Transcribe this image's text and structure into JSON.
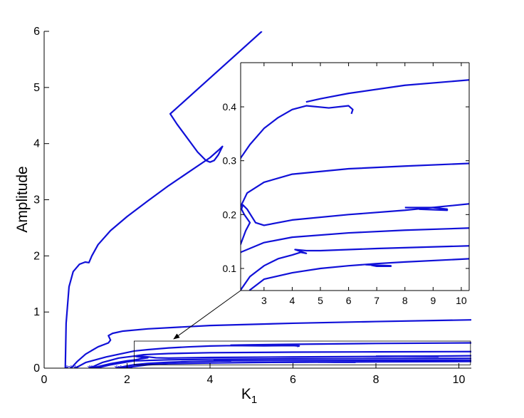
{
  "chart_data": [
    {
      "type": "line",
      "ylabel": "Amplitude",
      "xlabel": "K",
      "xlabel_subscript": "1",
      "color": "#1010d8",
      "box": false,
      "xlim": [
        0,
        10.3
      ],
      "ylim": [
        0,
        6
      ],
      "xticks": [
        0,
        2,
        4,
        6,
        8,
        10
      ],
      "yticks": [
        0,
        1,
        2,
        3,
        4,
        5,
        6
      ],
      "series": [
        {
          "x": [
            0.51,
            0.53,
            0.6,
            0.7,
            0.85,
            0.99,
            1.08,
            1.15,
            1.3,
            1.6,
            2,
            2.5,
            3,
            3.5,
            4,
            4.2,
            4.3,
            4.2,
            4.1,
            4.0,
            3.9,
            3.7,
            3.4,
            3.2,
            3.04,
            5.25
          ],
          "values": [
            0,
            0.8,
            1.45,
            1.72,
            1.85,
            1.89,
            1.88,
            2.0,
            2.2,
            2.45,
            2.7,
            2.98,
            3.25,
            3.5,
            3.75,
            3.88,
            3.95,
            3.8,
            3.7,
            3.67,
            3.7,
            3.85,
            4.15,
            4.35,
            4.53,
            6.0
          ]
        },
        {
          "x": [
            0.65,
            0.8,
            1.0,
            1.3,
            1.55,
            1.6,
            1.55,
            1.65,
            1.9,
            2.5,
            4,
            6,
            8,
            10.3
          ],
          "values": [
            0,
            0.12,
            0.25,
            0.38,
            0.45,
            0.5,
            0.58,
            0.62,
            0.66,
            0.7,
            0.76,
            0.8,
            0.83,
            0.86
          ]
        },
        {
          "x": [
            0.75,
            1.0,
            1.5,
            2.17,
            2.5,
            3,
            3.5,
            4,
            4.5,
            5.3,
            6.0,
            6.15,
            6.1,
            6.1,
            4.49,
            5,
            6,
            8,
            10.3
          ],
          "values": [
            0,
            0.1,
            0.2,
            0.305,
            0.33,
            0.36,
            0.38,
            0.395,
            0.402,
            0.398,
            0.402,
            0.395,
            0.387,
            null,
            0.409,
            0.415,
            0.425,
            0.44,
            0.45
          ]
        },
        {
          "x": [
            1.1,
            1.4,
            1.8,
            2.17,
            2.4,
            3,
            4,
            6,
            8,
            10.3
          ],
          "values": [
            0,
            0.1,
            0.18,
            0.215,
            0.24,
            0.26,
            0.275,
            0.285,
            0.29,
            0.295
          ]
        },
        {
          "x": [
            1.15,
            1.6,
            2.0,
            2.17,
            2.35,
            2.5,
            2.3,
            2.2,
            2.25,
            2.4,
            2.7,
            3,
            4,
            6,
            8,
            10.3
          ],
          "values": [
            0,
            0.08,
            0.13,
            0.145,
            0.17,
            0.185,
            0.2,
            0.21,
            0.218,
            0.21,
            0.185,
            0.18,
            0.19,
            0.2,
            0.208,
            0.22
          ]
        },
        {
          "x": [
            8,
            8.5,
            9,
            9.5,
            9.5,
            9,
            8.5
          ],
          "values": [
            0.213,
            0.213,
            0.213,
            0.21,
            0.208,
            0.209,
            0.21
          ]
        },
        {
          "x": [
            1.25,
            1.6,
            2.0,
            2.17,
            3,
            4,
            6,
            8,
            10.3
          ],
          "values": [
            0,
            0.06,
            0.11,
            0.13,
            0.148,
            0.158,
            0.166,
            0.171,
            0.175
          ]
        },
        {
          "x": [
            1.75,
            2.0,
            2.17,
            2.5,
            3,
            3.5,
            4,
            4.3,
            4.5,
            4.1,
            4.5,
            5,
            7,
            10.3
          ],
          "values": [
            0,
            0.04,
            0.06,
            0.085,
            0.105,
            0.118,
            0.125,
            0.13,
            0.128,
            0.135,
            0.133,
            0.133,
            0.137,
            0.142
          ]
        },
        {
          "x": [
            1.85,
            2.17,
            2.5,
            3,
            4,
            5,
            6,
            7,
            8,
            10.3
          ],
          "values": [
            0,
            0.03,
            0.06,
            0.08,
            0.092,
            0.1,
            0.105,
            0.109,
            0.112,
            0.118
          ]
        },
        {
          "x": [
            6.6,
            7,
            7.5,
            7.5,
            7,
            6.8
          ],
          "values": [
            0.107,
            0.106,
            0.105,
            0.104,
            0.104,
            0.106
          ]
        },
        {
          "marker": "*",
          "x": [
            0.55,
            0.65,
            0.75,
            1.1,
            1.15,
            1.25,
            1.75,
            1.85,
            2.1
          ],
          "values": [
            0,
            0,
            0,
            0,
            0,
            0,
            0,
            0,
            0
          ]
        }
      ]
    },
    {
      "type": "line",
      "box": true,
      "xlim": [
        2.17,
        10.28
      ],
      "ylim": [
        0.059,
        0.482
      ],
      "xticks": [
        3,
        4,
        5,
        6,
        7,
        8,
        9,
        10
      ],
      "yticks": [
        0.1,
        0.2,
        0.3,
        0.4
      ]
    }
  ]
}
